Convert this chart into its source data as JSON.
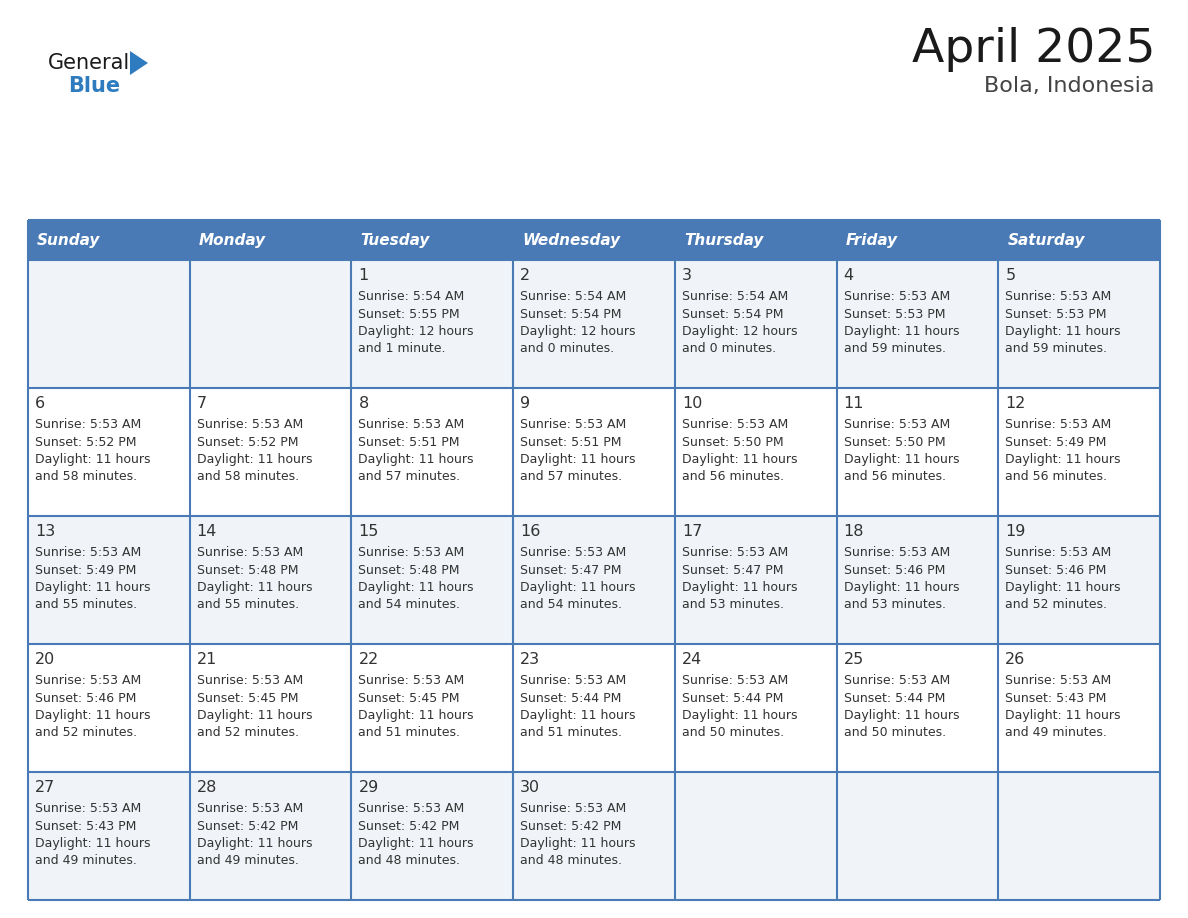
{
  "title": "April 2025",
  "subtitle": "Bola, Indonesia",
  "days_of_week": [
    "Sunday",
    "Monday",
    "Tuesday",
    "Wednesday",
    "Thursday",
    "Friday",
    "Saturday"
  ],
  "header_bg": "#4a7ab5",
  "header_text": "#ffffff",
  "row_bg_odd": "#f0f4f8",
  "row_bg_even": "#ffffff",
  "cell_border": "#4a7ab5",
  "text_color": "#333333",
  "title_color": "#1a1a1a",
  "subtitle_color": "#444444",
  "logo_general_color": "#1a1a1a",
  "logo_blue_color": "#2e7bbf",
  "calendar": [
    [
      {
        "day": null,
        "sunrise": null,
        "sunset": null,
        "daylight": null
      },
      {
        "day": null,
        "sunrise": null,
        "sunset": null,
        "daylight": null
      },
      {
        "day": 1,
        "sunrise": "5:54 AM",
        "sunset": "5:55 PM",
        "daylight": "12 hours and 1 minute."
      },
      {
        "day": 2,
        "sunrise": "5:54 AM",
        "sunset": "5:54 PM",
        "daylight": "12 hours and 0 minutes."
      },
      {
        "day": 3,
        "sunrise": "5:54 AM",
        "sunset": "5:54 PM",
        "daylight": "12 hours and 0 minutes."
      },
      {
        "day": 4,
        "sunrise": "5:53 AM",
        "sunset": "5:53 PM",
        "daylight": "11 hours and 59 minutes."
      },
      {
        "day": 5,
        "sunrise": "5:53 AM",
        "sunset": "5:53 PM",
        "daylight": "11 hours and 59 minutes."
      }
    ],
    [
      {
        "day": 6,
        "sunrise": "5:53 AM",
        "sunset": "5:52 PM",
        "daylight": "11 hours and 58 minutes."
      },
      {
        "day": 7,
        "sunrise": "5:53 AM",
        "sunset": "5:52 PM",
        "daylight": "11 hours and 58 minutes."
      },
      {
        "day": 8,
        "sunrise": "5:53 AM",
        "sunset": "5:51 PM",
        "daylight": "11 hours and 57 minutes."
      },
      {
        "day": 9,
        "sunrise": "5:53 AM",
        "sunset": "5:51 PM",
        "daylight": "11 hours and 57 minutes."
      },
      {
        "day": 10,
        "sunrise": "5:53 AM",
        "sunset": "5:50 PM",
        "daylight": "11 hours and 56 minutes."
      },
      {
        "day": 11,
        "sunrise": "5:53 AM",
        "sunset": "5:50 PM",
        "daylight": "11 hours and 56 minutes."
      },
      {
        "day": 12,
        "sunrise": "5:53 AM",
        "sunset": "5:49 PM",
        "daylight": "11 hours and 56 minutes."
      }
    ],
    [
      {
        "day": 13,
        "sunrise": "5:53 AM",
        "sunset": "5:49 PM",
        "daylight": "11 hours and 55 minutes."
      },
      {
        "day": 14,
        "sunrise": "5:53 AM",
        "sunset": "5:48 PM",
        "daylight": "11 hours and 55 minutes."
      },
      {
        "day": 15,
        "sunrise": "5:53 AM",
        "sunset": "5:48 PM",
        "daylight": "11 hours and 54 minutes."
      },
      {
        "day": 16,
        "sunrise": "5:53 AM",
        "sunset": "5:47 PM",
        "daylight": "11 hours and 54 minutes."
      },
      {
        "day": 17,
        "sunrise": "5:53 AM",
        "sunset": "5:47 PM",
        "daylight": "11 hours and 53 minutes."
      },
      {
        "day": 18,
        "sunrise": "5:53 AM",
        "sunset": "5:46 PM",
        "daylight": "11 hours and 53 minutes."
      },
      {
        "day": 19,
        "sunrise": "5:53 AM",
        "sunset": "5:46 PM",
        "daylight": "11 hours and 52 minutes."
      }
    ],
    [
      {
        "day": 20,
        "sunrise": "5:53 AM",
        "sunset": "5:46 PM",
        "daylight": "11 hours and 52 minutes."
      },
      {
        "day": 21,
        "sunrise": "5:53 AM",
        "sunset": "5:45 PM",
        "daylight": "11 hours and 52 minutes."
      },
      {
        "day": 22,
        "sunrise": "5:53 AM",
        "sunset": "5:45 PM",
        "daylight": "11 hours and 51 minutes."
      },
      {
        "day": 23,
        "sunrise": "5:53 AM",
        "sunset": "5:44 PM",
        "daylight": "11 hours and 51 minutes."
      },
      {
        "day": 24,
        "sunrise": "5:53 AM",
        "sunset": "5:44 PM",
        "daylight": "11 hours and 50 minutes."
      },
      {
        "day": 25,
        "sunrise": "5:53 AM",
        "sunset": "5:44 PM",
        "daylight": "11 hours and 50 minutes."
      },
      {
        "day": 26,
        "sunrise": "5:53 AM",
        "sunset": "5:43 PM",
        "daylight": "11 hours and 49 minutes."
      }
    ],
    [
      {
        "day": 27,
        "sunrise": "5:53 AM",
        "sunset": "5:43 PM",
        "daylight": "11 hours and 49 minutes."
      },
      {
        "day": 28,
        "sunrise": "5:53 AM",
        "sunset": "5:42 PM",
        "daylight": "11 hours and 49 minutes."
      },
      {
        "day": 29,
        "sunrise": "5:53 AM",
        "sunset": "5:42 PM",
        "daylight": "11 hours and 48 minutes."
      },
      {
        "day": 30,
        "sunrise": "5:53 AM",
        "sunset": "5:42 PM",
        "daylight": "11 hours and 48 minutes."
      },
      {
        "day": null,
        "sunrise": null,
        "sunset": null,
        "daylight": null
      },
      {
        "day": null,
        "sunrise": null,
        "sunset": null,
        "daylight": null
      },
      {
        "day": null,
        "sunrise": null,
        "sunset": null,
        "daylight": null
      }
    ]
  ]
}
